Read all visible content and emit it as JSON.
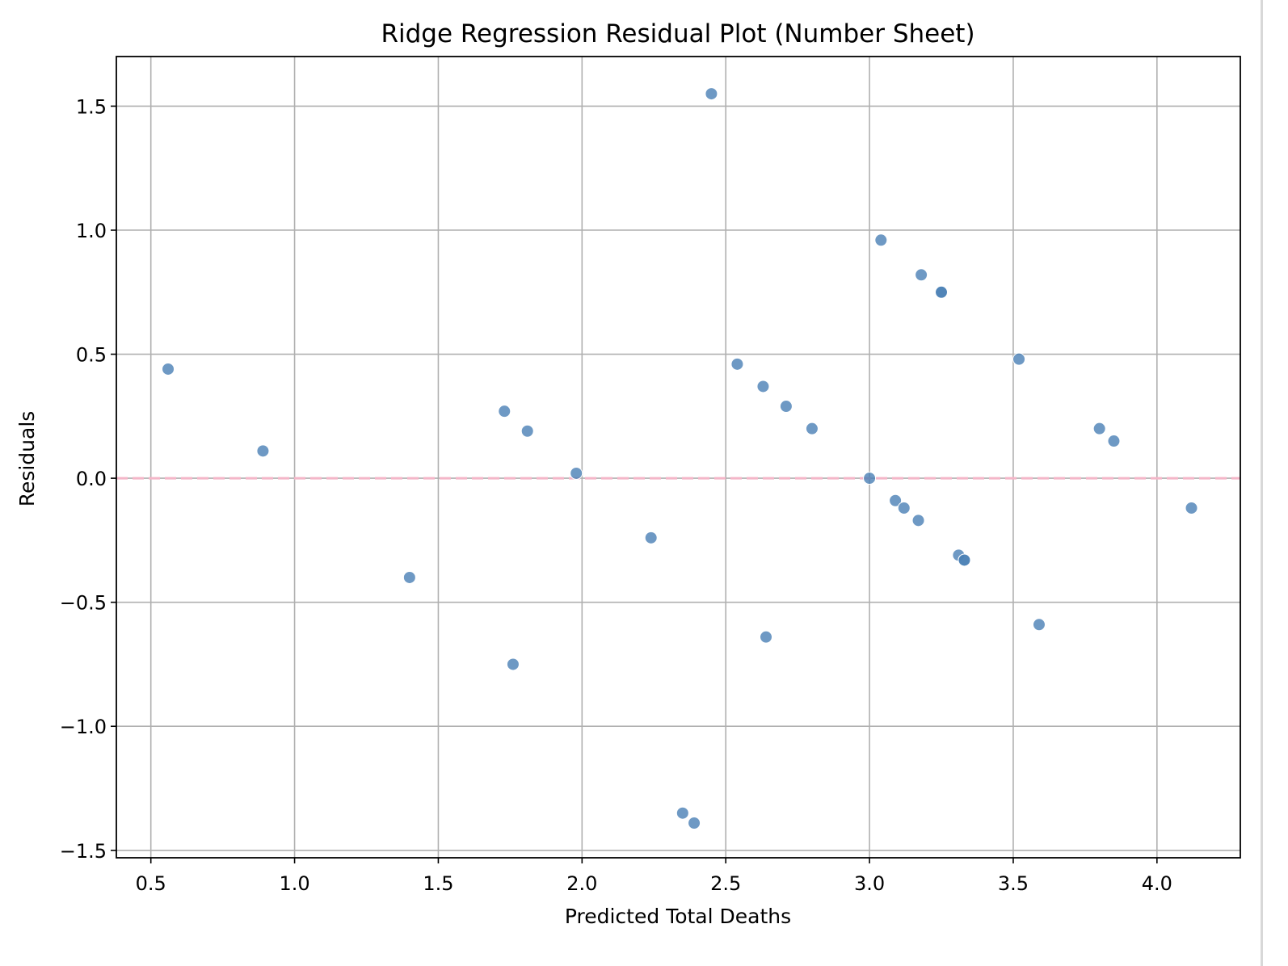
{
  "chart_data": {
    "type": "scatter",
    "title": "Ridge Regression Residual Plot (Number Sheet)",
    "xlabel": "Predicted Total Deaths",
    "ylabel": "Residuals",
    "xlim": [
      0.38,
      4.29
    ],
    "ylim": [
      -1.53,
      1.7
    ],
    "xticks": [
      0.5,
      1.0,
      1.5,
      2.0,
      2.5,
      3.0,
      3.5,
      4.0
    ],
    "xtick_labels": [
      "0.5",
      "1.0",
      "1.5",
      "2.0",
      "2.5",
      "3.0",
      "3.5",
      "4.0"
    ],
    "yticks": [
      -1.5,
      -1.0,
      -0.5,
      0.0,
      0.5,
      1.0,
      1.5
    ],
    "ytick_labels": [
      "−1.5",
      "−1.0",
      "−0.5",
      "0.0",
      "0.5",
      "1.0",
      "1.5"
    ],
    "grid": true,
    "reference_line": {
      "y": 0.0,
      "style": "dashed",
      "color": "#f4b6c8"
    },
    "point_color": "#4a7fb5",
    "points": [
      {
        "x": 0.56,
        "y": 0.44
      },
      {
        "x": 0.89,
        "y": 0.11
      },
      {
        "x": 1.4,
        "y": -0.4
      },
      {
        "x": 1.73,
        "y": 0.27
      },
      {
        "x": 1.76,
        "y": -0.75
      },
      {
        "x": 1.81,
        "y": 0.19
      },
      {
        "x": 1.98,
        "y": 0.02
      },
      {
        "x": 2.24,
        "y": -0.24
      },
      {
        "x": 2.35,
        "y": -1.35
      },
      {
        "x": 2.39,
        "y": -1.39
      },
      {
        "x": 2.45,
        "y": 1.55
      },
      {
        "x": 2.54,
        "y": 0.46
      },
      {
        "x": 2.63,
        "y": 0.37
      },
      {
        "x": 2.64,
        "y": -0.64
      },
      {
        "x": 2.71,
        "y": 0.29
      },
      {
        "x": 2.8,
        "y": 0.2
      },
      {
        "x": 3.0,
        "y": 0.0
      },
      {
        "x": 3.04,
        "y": 0.96
      },
      {
        "x": 3.09,
        "y": -0.09
      },
      {
        "x": 3.12,
        "y": -0.12
      },
      {
        "x": 3.17,
        "y": -0.17
      },
      {
        "x": 3.18,
        "y": 0.82
      },
      {
        "x": 3.25,
        "y": 0.75
      },
      {
        "x": 3.25,
        "y": 0.75
      },
      {
        "x": 3.31,
        "y": -0.31
      },
      {
        "x": 3.33,
        "y": -0.33
      },
      {
        "x": 3.33,
        "y": -0.33
      },
      {
        "x": 3.52,
        "y": 0.48
      },
      {
        "x": 3.59,
        "y": -0.59
      },
      {
        "x": 3.8,
        "y": 0.2
      },
      {
        "x": 3.85,
        "y": 0.15
      },
      {
        "x": 4.12,
        "y": -0.12
      }
    ]
  }
}
